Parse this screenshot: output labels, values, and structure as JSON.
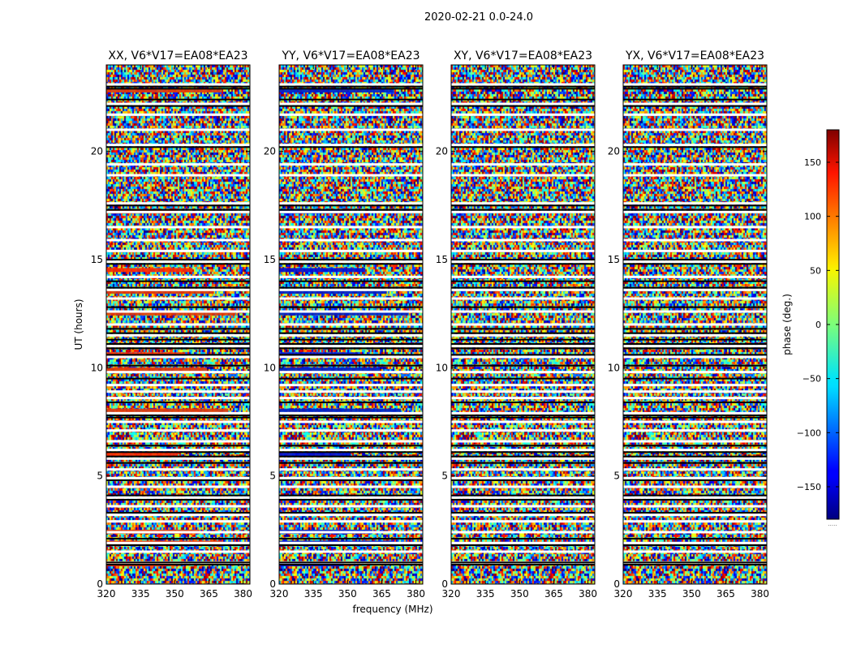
{
  "chart_data": {
    "type": "heatmap",
    "suptitle": "2020-02-21 0.0-24.0",
    "xlabel": "frequency (MHz)",
    "ylabel": "UT (hours)",
    "xlim": [
      320,
      383
    ],
    "ylim": [
      0,
      24
    ],
    "xticks": [
      320,
      335,
      350,
      365,
      380
    ],
    "xtick_labels": [
      "320",
      "335",
      "350",
      "365",
      "380"
    ],
    "yticks": [
      0,
      5,
      10,
      15,
      20
    ],
    "ytick_labels": [
      "0",
      "5",
      "10",
      "15",
      "20"
    ],
    "colorbar": {
      "label": "phase (deg.)",
      "range": [
        -180,
        180
      ],
      "ticks": [
        150,
        100,
        50,
        0,
        -50,
        -100,
        -150
      ],
      "tick_labels": [
        "150",
        "100",
        "50",
        "0",
        "−50",
        "−100",
        "−150"
      ],
      "colormap": "jet",
      "under_label": "....."
    },
    "panels": [
      {
        "title": "XX, V6*V17=EA08*EA23"
      },
      {
        "title": "YY, V6*V17=EA08*EA23"
      },
      {
        "title": "XY, V6*V17=EA08*EA23"
      },
      {
        "title": "YX, V6*V17=EA08*EA23"
      }
    ],
    "flagged_white_ut": [
      23.1,
      22.2,
      21.7,
      21.0,
      20.3,
      19.4,
      18.9,
      17.6,
      17.2,
      16.5,
      15.9,
      15.4,
      14.9,
      14.2,
      13.6,
      13.2,
      12.6,
      12.0,
      11.5,
      11.0,
      10.5,
      9.8,
      9.2,
      8.9,
      8.6,
      7.9,
      7.5,
      7.1,
      6.6,
      6.2,
      5.8,
      5.3,
      4.9,
      4.5,
      4.0,
      3.6,
      3.2,
      2.9,
      2.4,
      1.9,
      1.5,
      1.0
    ],
    "flagged_black_ut": [
      23.0,
      22.9,
      22.4,
      22.1,
      20.2,
      17.5,
      17.3,
      15.0,
      14.8,
      14.0,
      13.7,
      12.8,
      11.8,
      11.6,
      11.3,
      11.1,
      10.9,
      10.6,
      10.1,
      9.5,
      8.4,
      7.8,
      7.7,
      6.4,
      6.1,
      5.9,
      5.6,
      4.8,
      4.1,
      3.9,
      3.3,
      2.1,
      1.8,
      1.0,
      0.9
    ],
    "stripe_ut": [
      0.9,
      1.9,
      2.4,
      6.0,
      8.0,
      9.9,
      10.6,
      12.5,
      13.5,
      14.5,
      17.2,
      22.8
    ]
  }
}
